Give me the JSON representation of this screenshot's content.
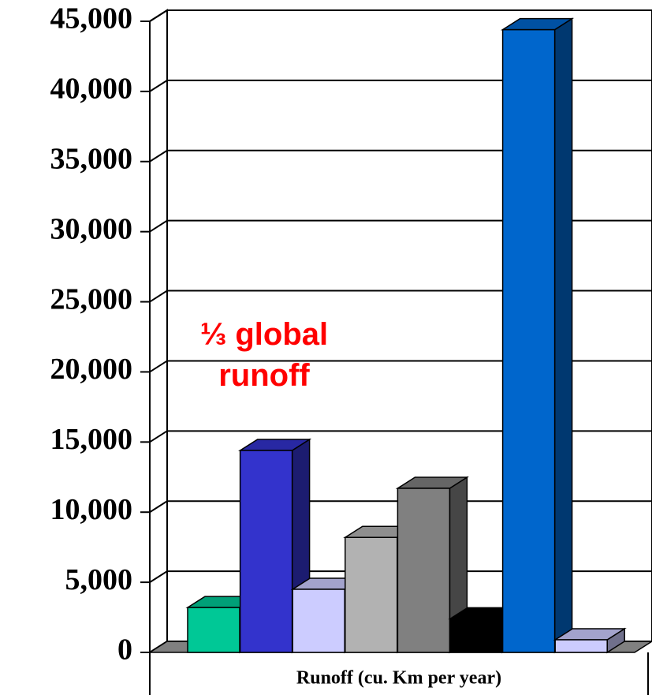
{
  "chart_data": {
    "type": "bar3d",
    "categories": [
      null,
      null,
      null,
      null,
      null,
      null,
      null,
      null
    ],
    "series": [
      {
        "values": [
          3200,
          14400,
          4500,
          8200,
          11700,
          2400,
          44400,
          900
        ],
        "colors": [
          "#00c896",
          "#3333cc",
          "#ccccff",
          "#b2b2b2",
          "#808080",
          "#000000",
          "#0066cc",
          "#ccccff"
        ]
      }
    ],
    "x_label": "Runoff (cu. Km per year)",
    "annotation": "⅓ global runoff",
    "ylim": [
      0,
      45000
    ],
    "yticks": [
      {
        "value": 0,
        "label": "0"
      },
      {
        "value": 5000,
        "label": "5,000"
      },
      {
        "value": 10000,
        "label": "10,000"
      },
      {
        "value": 15000,
        "label": "15,000"
      },
      {
        "value": 20000,
        "label": "20,000"
      },
      {
        "value": 25000,
        "label": "25,000"
      },
      {
        "value": 30000,
        "label": "30,000"
      },
      {
        "value": 35000,
        "label": "35,000"
      },
      {
        "value": 40000,
        "label": "40,000"
      },
      {
        "value": 45000,
        "label": "45,000"
      }
    ],
    "grid": true
  }
}
